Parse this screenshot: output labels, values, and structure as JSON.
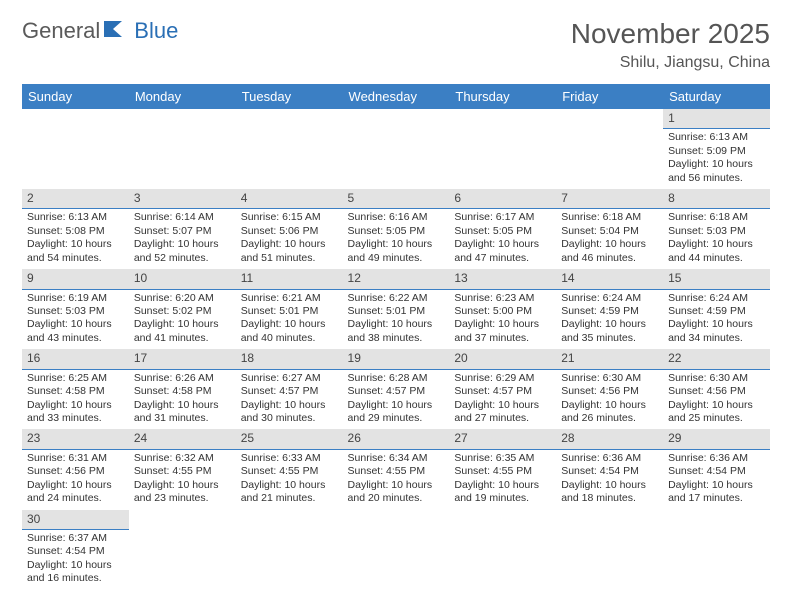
{
  "brand": {
    "part1": "General",
    "part2": "Blue"
  },
  "title": "November 2025",
  "location": "Shilu, Jiangsu, China",
  "colors": {
    "header_bg": "#3b7fc4",
    "header_fg": "#ffffff",
    "daynum_bg": "#e3e3e3",
    "daynum_border": "#3b7fc4",
    "brand_gray": "#5a5a5a",
    "brand_blue": "#2a6fb5"
  },
  "day_headers": [
    "Sunday",
    "Monday",
    "Tuesday",
    "Wednesday",
    "Thursday",
    "Friday",
    "Saturday"
  ],
  "first_weekday_index": 6,
  "days": [
    {
      "n": 1,
      "sunrise": "6:13 AM",
      "sunset": "5:09 PM",
      "daylight": "10 hours and 56 minutes."
    },
    {
      "n": 2,
      "sunrise": "6:13 AM",
      "sunset": "5:08 PM",
      "daylight": "10 hours and 54 minutes."
    },
    {
      "n": 3,
      "sunrise": "6:14 AM",
      "sunset": "5:07 PM",
      "daylight": "10 hours and 52 minutes."
    },
    {
      "n": 4,
      "sunrise": "6:15 AM",
      "sunset": "5:06 PM",
      "daylight": "10 hours and 51 minutes."
    },
    {
      "n": 5,
      "sunrise": "6:16 AM",
      "sunset": "5:05 PM",
      "daylight": "10 hours and 49 minutes."
    },
    {
      "n": 6,
      "sunrise": "6:17 AM",
      "sunset": "5:05 PM",
      "daylight": "10 hours and 47 minutes."
    },
    {
      "n": 7,
      "sunrise": "6:18 AM",
      "sunset": "5:04 PM",
      "daylight": "10 hours and 46 minutes."
    },
    {
      "n": 8,
      "sunrise": "6:18 AM",
      "sunset": "5:03 PM",
      "daylight": "10 hours and 44 minutes."
    },
    {
      "n": 9,
      "sunrise": "6:19 AM",
      "sunset": "5:03 PM",
      "daylight": "10 hours and 43 minutes."
    },
    {
      "n": 10,
      "sunrise": "6:20 AM",
      "sunset": "5:02 PM",
      "daylight": "10 hours and 41 minutes."
    },
    {
      "n": 11,
      "sunrise": "6:21 AM",
      "sunset": "5:01 PM",
      "daylight": "10 hours and 40 minutes."
    },
    {
      "n": 12,
      "sunrise": "6:22 AM",
      "sunset": "5:01 PM",
      "daylight": "10 hours and 38 minutes."
    },
    {
      "n": 13,
      "sunrise": "6:23 AM",
      "sunset": "5:00 PM",
      "daylight": "10 hours and 37 minutes."
    },
    {
      "n": 14,
      "sunrise": "6:24 AM",
      "sunset": "4:59 PM",
      "daylight": "10 hours and 35 minutes."
    },
    {
      "n": 15,
      "sunrise": "6:24 AM",
      "sunset": "4:59 PM",
      "daylight": "10 hours and 34 minutes."
    },
    {
      "n": 16,
      "sunrise": "6:25 AM",
      "sunset": "4:58 PM",
      "daylight": "10 hours and 33 minutes."
    },
    {
      "n": 17,
      "sunrise": "6:26 AM",
      "sunset": "4:58 PM",
      "daylight": "10 hours and 31 minutes."
    },
    {
      "n": 18,
      "sunrise": "6:27 AM",
      "sunset": "4:57 PM",
      "daylight": "10 hours and 30 minutes."
    },
    {
      "n": 19,
      "sunrise": "6:28 AM",
      "sunset": "4:57 PM",
      "daylight": "10 hours and 29 minutes."
    },
    {
      "n": 20,
      "sunrise": "6:29 AM",
      "sunset": "4:57 PM",
      "daylight": "10 hours and 27 minutes."
    },
    {
      "n": 21,
      "sunrise": "6:30 AM",
      "sunset": "4:56 PM",
      "daylight": "10 hours and 26 minutes."
    },
    {
      "n": 22,
      "sunrise": "6:30 AM",
      "sunset": "4:56 PM",
      "daylight": "10 hours and 25 minutes."
    },
    {
      "n": 23,
      "sunrise": "6:31 AM",
      "sunset": "4:56 PM",
      "daylight": "10 hours and 24 minutes."
    },
    {
      "n": 24,
      "sunrise": "6:32 AM",
      "sunset": "4:55 PM",
      "daylight": "10 hours and 23 minutes."
    },
    {
      "n": 25,
      "sunrise": "6:33 AM",
      "sunset": "4:55 PM",
      "daylight": "10 hours and 21 minutes."
    },
    {
      "n": 26,
      "sunrise": "6:34 AM",
      "sunset": "4:55 PM",
      "daylight": "10 hours and 20 minutes."
    },
    {
      "n": 27,
      "sunrise": "6:35 AM",
      "sunset": "4:55 PM",
      "daylight": "10 hours and 19 minutes."
    },
    {
      "n": 28,
      "sunrise": "6:36 AM",
      "sunset": "4:54 PM",
      "daylight": "10 hours and 18 minutes."
    },
    {
      "n": 29,
      "sunrise": "6:36 AM",
      "sunset": "4:54 PM",
      "daylight": "10 hours and 17 minutes."
    },
    {
      "n": 30,
      "sunrise": "6:37 AM",
      "sunset": "4:54 PM",
      "daylight": "10 hours and 16 minutes."
    }
  ],
  "labels": {
    "sunrise": "Sunrise:",
    "sunset": "Sunset:",
    "daylight": "Daylight:"
  }
}
